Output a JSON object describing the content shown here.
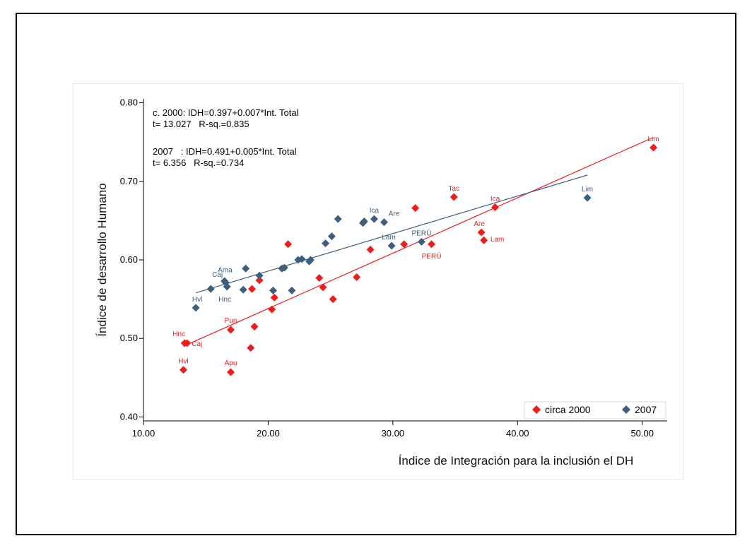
{
  "chart_data": {
    "type": "scatter",
    "xlabel": "Índice de Integración  para la  inclusión  el  DH",
    "ylabel": "Índice de desarrollo Humano",
    "xlim": [
      10,
      52
    ],
    "ylim": [
      0.395,
      0.805
    ],
    "x_ticks": [
      "10.00",
      "20.00",
      "30.00",
      "40.00",
      "50.00"
    ],
    "y_ticks": [
      "0.40",
      "0.50",
      "0.60",
      "0.70",
      "0.80"
    ],
    "annotations": [
      "c. 2000: IDH=0.397+0.007*Int. Total",
      "t= 13.027   R-sq.=0.835",
      "2007   : IDH=0.491+0.005*Int. Total",
      "t= 6.356   R-sq.=0.734"
    ],
    "legend": {
      "position": "bottom-right",
      "items": [
        "circa 2000",
        "2007"
      ]
    },
    "colors": {
      "circa2000": "#ee1c1c",
      "y2007": "#3d5e7c"
    },
    "series": [
      {
        "name": "circa 2000",
        "color": "#ee1c1c",
        "marker": "diamond",
        "fit": {
          "x": [
            13.2,
            50.9
          ],
          "y": [
            0.49,
            0.756
          ]
        },
        "points": [
          {
            "x": 13.2,
            "y": 0.46,
            "label": "Hvl"
          },
          {
            "x": 13.3,
            "y": 0.494,
            "label": "Hnc"
          },
          {
            "x": 13.5,
            "y": 0.494,
            "label": "Caj"
          },
          {
            "x": 17.0,
            "y": 0.457,
            "label": "Apu"
          },
          {
            "x": 17.0,
            "y": 0.511,
            "label": "Pun"
          },
          {
            "x": 18.6,
            "y": 0.488
          },
          {
            "x": 18.9,
            "y": 0.515
          },
          {
            "x": 18.7,
            "y": 0.563
          },
          {
            "x": 19.3,
            "y": 0.574
          },
          {
            "x": 20.3,
            "y": 0.537
          },
          {
            "x": 20.5,
            "y": 0.552
          },
          {
            "x": 21.6,
            "y": 0.62
          },
          {
            "x": 24.1,
            "y": 0.577
          },
          {
            "x": 24.4,
            "y": 0.565
          },
          {
            "x": 25.2,
            "y": 0.55
          },
          {
            "x": 27.1,
            "y": 0.578
          },
          {
            "x": 28.2,
            "y": 0.613
          },
          {
            "x": 30.9,
            "y": 0.62
          },
          {
            "x": 31.8,
            "y": 0.666
          },
          {
            "x": 33.1,
            "y": 0.62,
            "label": "PERÚ"
          },
          {
            "x": 34.9,
            "y": 0.68,
            "label": "Tac"
          },
          {
            "x": 37.1,
            "y": 0.635,
            "label": "Are"
          },
          {
            "x": 37.3,
            "y": 0.625,
            "label": "Lam"
          },
          {
            "x": 38.2,
            "y": 0.667,
            "label": "Ica"
          },
          {
            "x": 50.9,
            "y": 0.743,
            "label": "Lim"
          }
        ]
      },
      {
        "name": "2007",
        "color": "#3d5e7c",
        "marker": "diamond",
        "fit": {
          "x": [
            14.2,
            45.6
          ],
          "y": [
            0.558,
            0.708
          ]
        },
        "points": [
          {
            "x": 14.2,
            "y": 0.539,
            "label": "Hvl"
          },
          {
            "x": 15.4,
            "y": 0.563
          },
          {
            "x": 16.5,
            "y": 0.573,
            "label": "Caj"
          },
          {
            "x": 16.6,
            "y": 0.571,
            "label": "Ama"
          },
          {
            "x": 16.7,
            "y": 0.566,
            "label": "Hnc"
          },
          {
            "x": 18.0,
            "y": 0.562
          },
          {
            "x": 18.2,
            "y": 0.589
          },
          {
            "x": 19.3,
            "y": 0.58
          },
          {
            "x": 20.4,
            "y": 0.561
          },
          {
            "x": 21.1,
            "y": 0.589
          },
          {
            "x": 21.3,
            "y": 0.59
          },
          {
            "x": 21.9,
            "y": 0.561
          },
          {
            "x": 22.4,
            "y": 0.6
          },
          {
            "x": 22.7,
            "y": 0.601
          },
          {
            "x": 23.3,
            "y": 0.598
          },
          {
            "x": 23.4,
            "y": 0.6
          },
          {
            "x": 24.6,
            "y": 0.621
          },
          {
            "x": 25.1,
            "y": 0.63
          },
          {
            "x": 25.6,
            "y": 0.652
          },
          {
            "x": 27.6,
            "y": 0.647
          },
          {
            "x": 27.7,
            "y": 0.649
          },
          {
            "x": 28.5,
            "y": 0.652,
            "label": "Ica"
          },
          {
            "x": 29.3,
            "y": 0.648,
            "label": "Are"
          },
          {
            "x": 29.9,
            "y": 0.618,
            "label": "Lam"
          },
          {
            "x": 32.3,
            "y": 0.623,
            "label": "PERÚ"
          },
          {
            "x": 45.6,
            "y": 0.679,
            "label": "Lim"
          }
        ]
      }
    ]
  }
}
